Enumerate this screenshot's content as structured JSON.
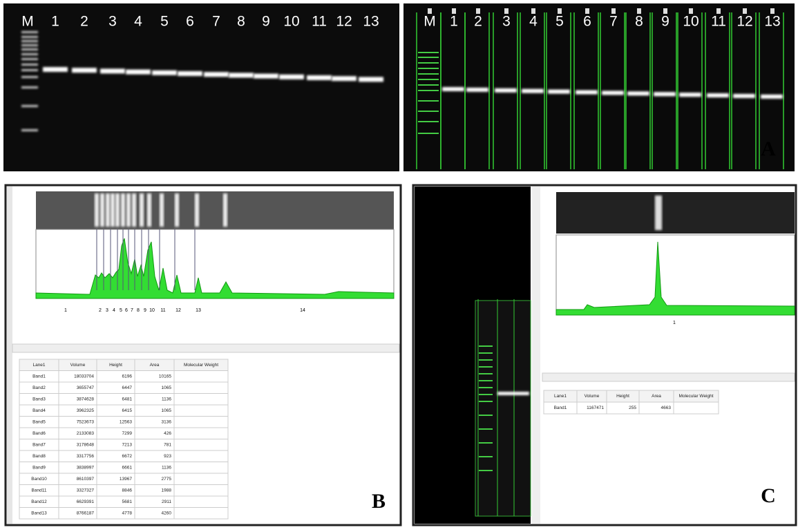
{
  "panel_a": {
    "label": "A",
    "left_gel_lanes": [
      "M",
      "1",
      "2",
      "3",
      "4",
      "5",
      "6",
      "7",
      "8",
      "9",
      "10",
      "11",
      "12",
      "13"
    ],
    "right_gel_lanes": [
      "M",
      "1",
      "2",
      "3",
      "4",
      "5",
      "6",
      "7",
      "8",
      "9",
      "10",
      "11",
      "12",
      "13"
    ]
  },
  "panel_b": {
    "label": "B",
    "peak_labels": [
      "1",
      "2",
      "3",
      "4",
      "5",
      "6",
      "7",
      "8",
      "9",
      "10",
      "11",
      "12",
      "13",
      "14"
    ],
    "table": {
      "header": [
        "Lane1",
        "Volume",
        "Height",
        "Area",
        "Molecular Weight"
      ],
      "rows": [
        [
          "Band1",
          "18033704",
          "6196",
          "10165",
          ""
        ],
        [
          "Band2",
          "3655747",
          "6447",
          "1065",
          ""
        ],
        [
          "Band3",
          "3874628",
          "6481",
          "1136",
          ""
        ],
        [
          "Band4",
          "3962325",
          "6415",
          "1065",
          ""
        ],
        [
          "Band5",
          "7523673",
          "12563",
          "3136",
          ""
        ],
        [
          "Band6",
          "2133083",
          "7299",
          "426",
          ""
        ],
        [
          "Band7",
          "3178648",
          "7213",
          "781",
          ""
        ],
        [
          "Band8",
          "3317756",
          "6672",
          "923",
          ""
        ],
        [
          "Band9",
          "3838997",
          "6661",
          "1136",
          ""
        ],
        [
          "Band10",
          "8610397",
          "13967",
          "2775",
          ""
        ],
        [
          "Band11",
          "3327327",
          "8846",
          "1988",
          ""
        ],
        [
          "Band12",
          "6629391",
          "5681",
          "2911",
          ""
        ],
        [
          "Band13",
          "8766187",
          "4778",
          "4260",
          ""
        ]
      ]
    }
  },
  "panel_c": {
    "label": "C",
    "peak_labels": [
      "1"
    ],
    "table": {
      "header": [
        "Lane1",
        "Volume",
        "Height",
        "Area",
        "Molecular Weight"
      ],
      "rows": [
        [
          "Band1",
          "1167471",
          "255",
          "4663",
          ""
        ]
      ]
    }
  }
}
